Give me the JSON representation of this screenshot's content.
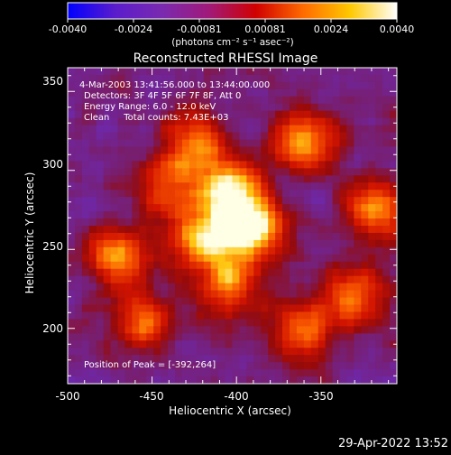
{
  "colorbar": {
    "ticks": [
      "-0.0040",
      "-0.0024",
      "-0.00081",
      "0.00081",
      "0.0024",
      "0.0040"
    ],
    "unit_label": "(photons cm⁻² s⁻¹ asec⁻²)",
    "colormap": [
      "#0000ff",
      "#5a1ccc",
      "#7a2ab0",
      "#a01a7a",
      "#d00000",
      "#ff6a00",
      "#ffc800",
      "#ffffff"
    ]
  },
  "title": "Reconstructed RHESSI Image",
  "info": {
    "line1": "4-Mar-2003 13:41:56.000 to 13:44:00.000",
    "line2": "Detectors: 3F 4F 5F 6F 7F 8F, Att 0",
    "line3": "Energy Range: 6.0 - 12.0 keV",
    "line4": "Clean     Total counts: 7.43E+03"
  },
  "peak_label": "Position of Peak = [-392,264]",
  "axes": {
    "xlabel": "Heliocentric X (arcsec)",
    "ylabel": "Heliocentric Y (arcsec)",
    "xticks": [
      "-500",
      "-450",
      "-400",
      "-350"
    ],
    "yticks": [
      "350",
      "300",
      "250",
      "200"
    ],
    "xrange": [
      -500,
      -305
    ],
    "yrange": [
      165,
      365
    ]
  },
  "timestamp": "29-Apr-2022 13:52",
  "image": {
    "peak_position": [
      -392,
      264
    ],
    "bright_regions": [
      {
        "x": -392,
        "y": 264,
        "level": 1.0
      },
      {
        "x": -405,
        "y": 290,
        "level": 0.75
      },
      {
        "x": -420,
        "y": 258,
        "level": 0.7
      },
      {
        "x": -470,
        "y": 245,
        "level": 0.65
      },
      {
        "x": -360,
        "y": 318,
        "level": 0.65
      },
      {
        "x": -318,
        "y": 275,
        "level": 0.6
      },
      {
        "x": -330,
        "y": 220,
        "level": 0.6
      },
      {
        "x": -405,
        "y": 228,
        "level": 0.6
      },
      {
        "x": -455,
        "y": 205,
        "level": 0.5
      },
      {
        "x": -360,
        "y": 200,
        "level": 0.55
      },
      {
        "x": -425,
        "y": 318,
        "level": 0.55
      },
      {
        "x": -440,
        "y": 290,
        "level": 0.5
      }
    ]
  }
}
